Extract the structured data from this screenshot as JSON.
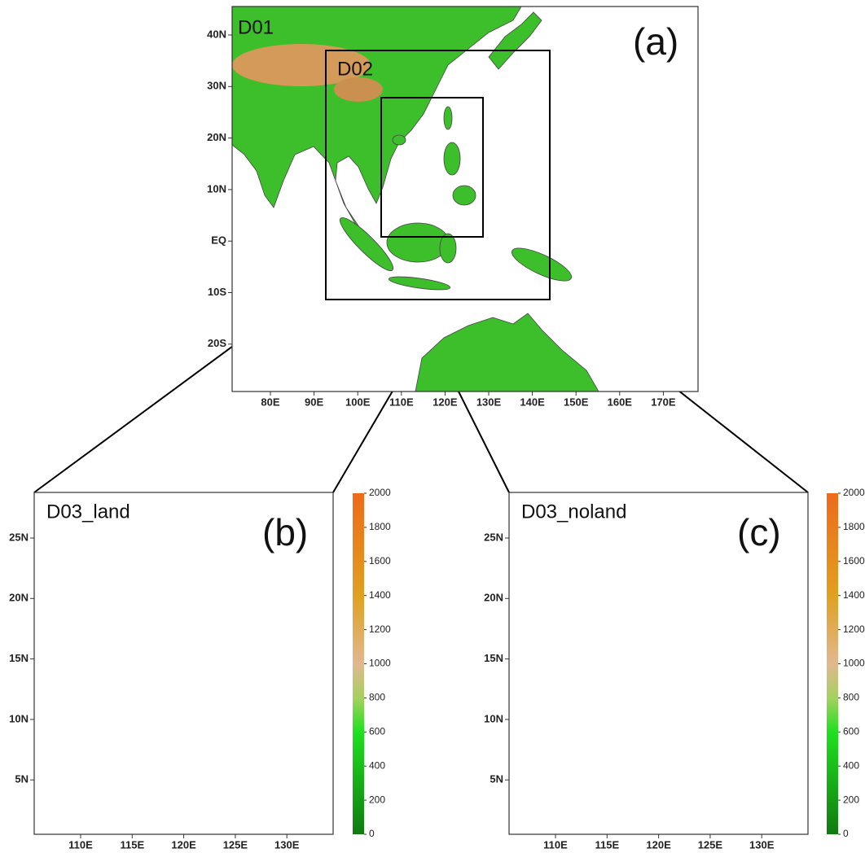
{
  "panels": [
    {
      "label": "(a)",
      "domains": [
        "D01",
        "D02"
      ],
      "x_ticks": [
        "80E",
        "90E",
        "100E",
        "110E",
        "120E",
        "130E",
        "140E",
        "150E",
        "160E",
        "170E"
      ],
      "y_ticks": [
        "40N",
        "30N",
        "20N",
        "10N",
        "EQ",
        "10S",
        "20S"
      ]
    },
    {
      "label": "(b)",
      "name": "D03_land",
      "x_ticks": [
        "110E",
        "115E",
        "120E",
        "125E",
        "130E"
      ],
      "y_ticks": [
        "25N",
        "20N",
        "15N",
        "10N",
        "5N"
      ],
      "colorbar": {
        "lim": [
          0,
          2000
        ],
        "ticks": [
          0,
          200,
          400,
          600,
          800,
          1000,
          1200,
          1400,
          1600,
          1800,
          2000
        ]
      }
    },
    {
      "label": "(c)",
      "name": "D03_noland",
      "x_ticks": [
        "110E",
        "115E",
        "120E",
        "125E",
        "130E"
      ],
      "y_ticks": [
        "25N",
        "20N",
        "15N",
        "10N",
        "5N"
      ],
      "colorbar": {
        "lim": [
          0,
          2000
        ],
        "ticks": [
          0,
          200,
          400,
          600,
          800,
          1000,
          1200,
          1400,
          1600,
          1800,
          2000
        ]
      }
    }
  ]
}
